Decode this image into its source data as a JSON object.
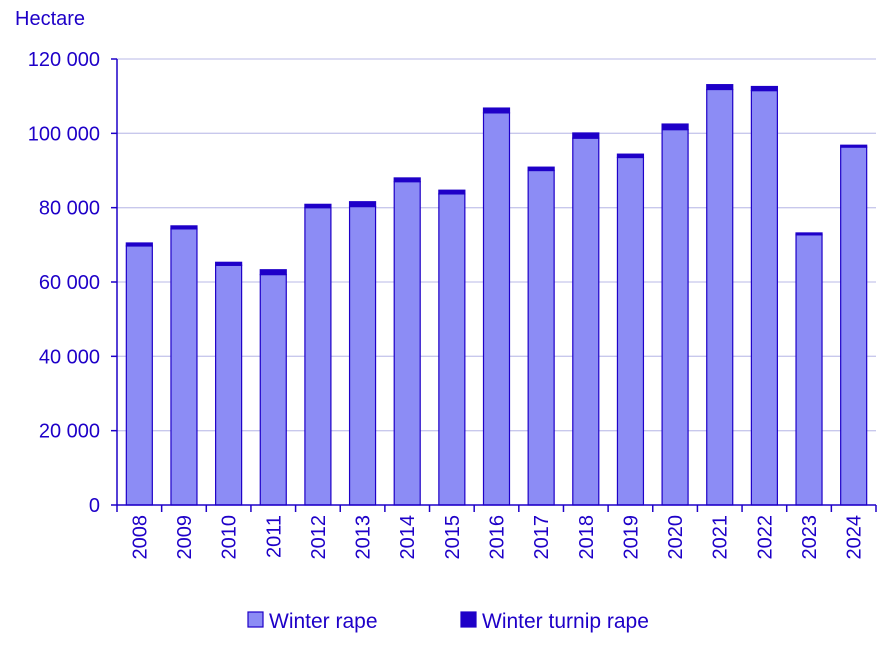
{
  "chart_data": {
    "type": "bar",
    "stacked": true,
    "ylabel": "Hectare",
    "ylim": [
      0,
      120000
    ],
    "yticks": [
      0,
      20000,
      40000,
      60000,
      80000,
      100000,
      120000
    ],
    "ytick_labels": [
      "0",
      "20 000",
      "40 000",
      "60 000",
      "80 000",
      "100 000",
      "120 000"
    ],
    "grid": true,
    "legend_position": "bottom",
    "categories": [
      "2008",
      "2009",
      "2010",
      "2011",
      "2012",
      "2013",
      "2014",
      "2015",
      "2016",
      "2017",
      "2018",
      "2019",
      "2020",
      "2021",
      "2022",
      "2023",
      "2024"
    ],
    "series": [
      {
        "name": "Winter rape",
        "color": "#8c8cf5",
        "values": [
          69700,
          74300,
          64500,
          62000,
          80000,
          80300,
          87000,
          83700,
          105500,
          90000,
          98700,
          93500,
          101000,
          111800,
          111500,
          72700,
          96300
        ]
      },
      {
        "name": "Winter turnip rape",
        "color": "#1e00c8",
        "values": [
          800,
          800,
          800,
          1300,
          900,
          1300,
          1000,
          1000,
          1300,
          900,
          1400,
          900,
          1500,
          1300,
          1100,
          500,
          500
        ]
      }
    ]
  }
}
